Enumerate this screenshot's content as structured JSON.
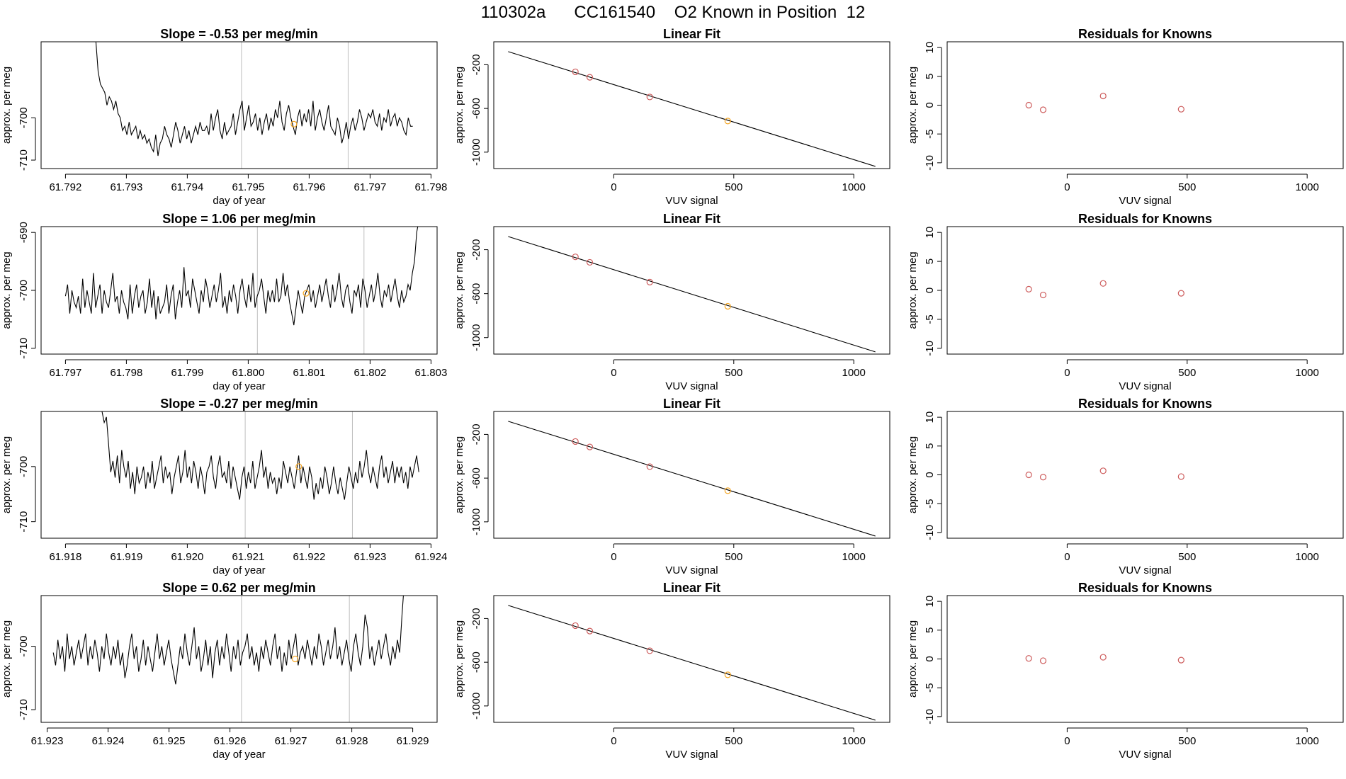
{
  "title": "110302a      CC161540    O2 Known in Position  12",
  "colors": {
    "line": "#000000",
    "known": "#cd5c5c",
    "sample": "#f5a623",
    "vline": "#bebebe",
    "box": "#000000"
  },
  "chart_data": [
    {
      "type": "line",
      "row": 1,
      "col": 1,
      "title": "Slope =  -0.53  per meg/min",
      "xlabel": "day of year",
      "ylabel": "approx. per meg",
      "xlim": [
        61.7916,
        61.7981
      ],
      "ylim": [
        -712,
        -682
      ],
      "xticks": [
        61.792,
        61.793,
        61.794,
        61.795,
        61.796,
        61.797,
        61.798
      ],
      "xtick_labels": [
        "61.792",
        "61.793",
        "61.794",
        "61.795",
        "61.796",
        "61.797",
        "61.798"
      ],
      "yticks": [
        -700,
        -710
      ],
      "ytick_labels": [
        "-700",
        "-710"
      ],
      "series_start": 61.7925,
      "series_end": 61.7977,
      "series_values": [
        -682,
        -689,
        -692,
        -693,
        -694,
        -697,
        -695,
        -696,
        -698,
        -696,
        -699,
        -700,
        -703,
        -702,
        -704,
        -701,
        -704,
        -703,
        -702,
        -705,
        -703,
        -705,
        -704,
        -706,
        -705,
        -707,
        -708,
        -704,
        -709,
        -706,
        -705,
        -702,
        -704,
        -705,
        -707,
        -704,
        -701,
        -703,
        -706,
        -704,
        -702,
        -705,
        -703,
        -706,
        -704,
        -702,
        -704,
        -701,
        -703,
        -703,
        -702,
        -704,
        -699,
        -703,
        -700,
        -698,
        -703,
        -705,
        -701,
        -704,
        -703,
        -702,
        -699,
        -704,
        -701,
        -698,
        -696,
        -703,
        -700,
        -697,
        -702,
        -701,
        -699,
        -703,
        -700,
        -704,
        -701,
        -699,
        -703,
        -700,
        -702,
        -698,
        -700,
        -696,
        -701,
        -703,
        -699,
        -697,
        -700,
        -702,
        -704,
        -700,
        -698,
        -702,
        -699,
        -701,
        -698,
        -702,
        -696,
        -703,
        -700,
        -698,
        -701,
        -703,
        -700,
        -697,
        -702,
        -703,
        -704,
        -700,
        -702,
        -706,
        -704,
        -701,
        -705,
        -702,
        -700,
        -703,
        -701,
        -698,
        -700,
        -703,
        -701,
        -699,
        -700,
        -698,
        -701,
        -702,
        -699,
        -703,
        -700,
        -701,
        -698,
        -702,
        -700,
        -699,
        -702,
        -700,
        -701,
        -703,
        -704,
        -700,
        -702,
        -702
      ],
      "vlines": [
        61.79489,
        61.79664
      ],
      "sample_points": [
        {
          "x": 61.79575,
          "y": -701.5
        }
      ]
    },
    {
      "type": "scatter",
      "row": 1,
      "col": 2,
      "title": "Linear Fit",
      "xlabel": "VUV signal",
      "ylabel": "approx. per meg",
      "xlim": [
        -500,
        1150
      ],
      "ylim": [
        -1150,
        10
      ],
      "xticks": [
        0,
        500,
        1000
      ],
      "xtick_labels": [
        "0",
        "500",
        "1000"
      ],
      "yticks": [
        -200,
        -600,
        -1000
      ],
      "ytick_labels": [
        "-200",
        "-600",
        "-1000"
      ],
      "fit_line": [
        [
          -440,
          -80
        ],
        [
          1090,
          -1130
        ]
      ],
      "known_points": [
        [
          -160,
          -265
        ],
        [
          -100,
          -315
        ],
        [
          150,
          -495
        ]
      ],
      "sample_points": [
        [
          475,
          -715
        ]
      ]
    },
    {
      "type": "scatter",
      "row": 1,
      "col": 3,
      "title": "Residuals for Knowns",
      "xlabel": "VUV signal",
      "ylabel": "approx. per meg",
      "xlim": [
        -500,
        1150
      ],
      "ylim": [
        -11,
        11
      ],
      "xticks": [
        0,
        500,
        1000
      ],
      "xtick_labels": [
        "0",
        "500",
        "1000"
      ],
      "yticks": [
        10,
        5,
        0,
        -5,
        -10
      ],
      "ytick_labels": [
        "10",
        "5",
        "0",
        "-5",
        "-10"
      ],
      "known_points": [
        [
          -160,
          0
        ],
        [
          -100,
          -0.8
        ],
        [
          150,
          1.6
        ],
        [
          475,
          -0.7
        ]
      ]
    },
    {
      "type": "line",
      "row": 2,
      "col": 1,
      "title": "Slope =  1.06  per meg/min",
      "xlabel": "day of year",
      "ylabel": "approx. per meg",
      "xlim": [
        61.7966,
        61.8031
      ],
      "ylim": [
        -711,
        -689
      ],
      "xticks": [
        61.797,
        61.798,
        61.799,
        61.8,
        61.801,
        61.802,
        61.803
      ],
      "xtick_labels": [
        "61.797",
        "61.798",
        "61.799",
        "61.800",
        "61.801",
        "61.802",
        "61.803"
      ],
      "yticks": [
        -690,
        -700,
        -710
      ],
      "ytick_labels": [
        "-690",
        "-700",
        "-710"
      ],
      "series_start": 61.797,
      "series_end": 61.8028,
      "series_values": [
        -701,
        -699,
        -704,
        -700,
        -702,
        -703,
        -701,
        -704,
        -698,
        -703,
        -700,
        -702,
        -704,
        -697,
        -703,
        -701,
        -699,
        -704,
        -700,
        -702,
        -703,
        -700,
        -697,
        -702,
        -701,
        -704,
        -700,
        -702,
        -703,
        -705,
        -699,
        -704,
        -701,
        -699,
        -703,
        -701,
        -700,
        -704,
        -702,
        -698,
        -703,
        -700,
        -705,
        -701,
        -704,
        -703,
        -702,
        -699,
        -704,
        -701,
        -699,
        -705,
        -702,
        -700,
        -703,
        -696,
        -701,
        -700,
        -703,
        -698,
        -700,
        -702,
        -704,
        -700,
        -702,
        -698,
        -700,
        -703,
        -701,
        -699,
        -702,
        -700,
        -697,
        -703,
        -701,
        -704,
        -700,
        -702,
        -699,
        -701,
        -704,
        -700,
        -698,
        -701,
        -703,
        -699,
        -702,
        -697,
        -703,
        -701,
        -700,
        -698,
        -701,
        -704,
        -700,
        -702,
        -700,
        -702,
        -698,
        -702,
        -701,
        -697,
        -701,
        -699,
        -702,
        -704,
        -706,
        -703,
        -700,
        -702,
        -704,
        -701,
        -700,
        -699,
        -702,
        -700,
        -703,
        -701,
        -699,
        -702,
        -700,
        -698,
        -701,
        -703,
        -699,
        -702,
        -700,
        -697,
        -701,
        -703,
        -700,
        -699,
        -702,
        -704,
        -700,
        -701,
        -699,
        -703,
        -698,
        -700,
        -703,
        -701,
        -699,
        -702,
        -700,
        -697,
        -701,
        -703,
        -700,
        -701,
        -699,
        -702,
        -700,
        -698,
        -701,
        -703,
        -700,
        -702,
        -701,
        -699,
        -700,
        -697,
        -695,
        -690,
        -688
      ],
      "vlines": [
        61.80015,
        61.8019
      ],
      "sample_points": [
        {
          "x": 61.80095,
          "y": -700.5
        }
      ]
    },
    {
      "type": "scatter",
      "row": 2,
      "col": 2,
      "title": "Linear Fit",
      "xlabel": "VUV signal",
      "ylabel": "approx. per meg",
      "xlim": [
        -500,
        1150
      ],
      "ylim": [
        -1150,
        10
      ],
      "xticks": [
        0,
        500,
        1000
      ],
      "xtick_labels": [
        "0",
        "500",
        "1000"
      ],
      "yticks": [
        -200,
        -600,
        -1000
      ],
      "ytick_labels": [
        "-200",
        "-600",
        "-1000"
      ],
      "fit_line": [
        [
          -440,
          -80
        ],
        [
          1090,
          -1130
        ]
      ],
      "known_points": [
        [
          -160,
          -265
        ],
        [
          -100,
          -315
        ],
        [
          150,
          -495
        ]
      ],
      "sample_points": [
        [
          475,
          -715
        ]
      ]
    },
    {
      "type": "scatter",
      "row": 2,
      "col": 3,
      "title": "Residuals for Knowns",
      "xlabel": "VUV signal",
      "ylabel": "approx. per meg",
      "xlim": [
        -500,
        1150
      ],
      "ylim": [
        -11,
        11
      ],
      "xticks": [
        0,
        500,
        1000
      ],
      "xtick_labels": [
        "0",
        "500",
        "1000"
      ],
      "yticks": [
        10,
        5,
        0,
        -5,
        -10
      ],
      "ytick_labels": [
        "10",
        "5",
        "0",
        "-5",
        "-10"
      ],
      "known_points": [
        [
          -160,
          0.2
        ],
        [
          -100,
          -0.8
        ],
        [
          150,
          1.2
        ],
        [
          475,
          -0.5
        ]
      ]
    },
    {
      "type": "line",
      "row": 3,
      "col": 1,
      "title": "Slope =  -0.27  per meg/min",
      "xlabel": "day of year",
      "ylabel": "approx. per meg",
      "xlim": [
        61.9176,
        61.9241
      ],
      "ylim": [
        -713,
        -690
      ],
      "xticks": [
        61.918,
        61.919,
        61.92,
        61.921,
        61.922,
        61.923,
        61.924
      ],
      "xtick_labels": [
        "61.918",
        "61.919",
        "61.920",
        "61.921",
        "61.922",
        "61.923",
        "61.924"
      ],
      "yticks": [
        -700,
        -710
      ],
      "ytick_labels": [
        "-700",
        "-710"
      ],
      "series_start": 61.9186,
      "series_end": 61.9238,
      "series_values": [
        -690,
        -692,
        -691,
        -696,
        -701,
        -699,
        -702,
        -698,
        -703,
        -697,
        -700,
        -702,
        -699,
        -704,
        -701,
        -705,
        -700,
        -703,
        -702,
        -700,
        -704,
        -701,
        -703,
        -699,
        -704,
        -702,
        -700,
        -698,
        -703,
        -700,
        -702,
        -701,
        -705,
        -702,
        -700,
        -698,
        -703,
        -701,
        -697,
        -702,
        -700,
        -703,
        -699,
        -701,
        -704,
        -700,
        -702,
        -705,
        -701,
        -700,
        -698,
        -702,
        -704,
        -700,
        -698,
        -702,
        -701,
        -703,
        -699,
        -704,
        -700,
        -702,
        -704,
        -706,
        -702,
        -700,
        -704,
        -701,
        -703,
        -699,
        -704,
        -702,
        -700,
        -697,
        -702,
        -700,
        -704,
        -701,
        -703,
        -702,
        -705,
        -702,
        -704,
        -699,
        -701,
        -703,
        -700,
        -702,
        -704,
        -701,
        -698,
        -703,
        -700,
        -702,
        -704,
        -700,
        -702,
        -706,
        -703,
        -705,
        -702,
        -704,
        -700,
        -702,
        -705,
        -703,
        -700,
        -703,
        -705,
        -702,
        -704,
        -706,
        -703,
        -700,
        -702,
        -704,
        -701,
        -703,
        -699,
        -702,
        -700,
        -697,
        -701,
        -703,
        -700,
        -702,
        -704,
        -700,
        -698,
        -702,
        -700,
        -703,
        -701,
        -699,
        -703,
        -700,
        -702,
        -700,
        -703,
        -701,
        -704,
        -700,
        -702,
        -700,
        -698,
        -701
      ],
      "vlines": [
        61.92095,
        61.92271
      ],
      "sample_points": [
        {
          "x": 61.92183,
          "y": -700
        }
      ]
    },
    {
      "type": "scatter",
      "row": 3,
      "col": 2,
      "title": "Linear Fit",
      "xlabel": "VUV signal",
      "ylabel": "approx. per meg",
      "xlim": [
        -500,
        1150
      ],
      "ylim": [
        -1150,
        10
      ],
      "xticks": [
        0,
        500,
        1000
      ],
      "xtick_labels": [
        "0",
        "500",
        "1000"
      ],
      "yticks": [
        -200,
        -600,
        -1000
      ],
      "ytick_labels": [
        "-200",
        "-600",
        "-1000"
      ],
      "fit_line": [
        [
          -440,
          -80
        ],
        [
          1090,
          -1130
        ]
      ],
      "known_points": [
        [
          -160,
          -265
        ],
        [
          -100,
          -315
        ],
        [
          150,
          -495
        ]
      ],
      "sample_points": [
        [
          475,
          -715
        ]
      ]
    },
    {
      "type": "scatter",
      "row": 3,
      "col": 3,
      "title": "Residuals for Knowns",
      "xlabel": "VUV signal",
      "ylabel": "approx. per meg",
      "xlim": [
        -500,
        1150
      ],
      "ylim": [
        -11,
        11
      ],
      "xticks": [
        0,
        500,
        1000
      ],
      "xtick_labels": [
        "0",
        "500",
        "1000"
      ],
      "yticks": [
        10,
        5,
        0,
        -5,
        -10
      ],
      "ytick_labels": [
        "10",
        "5",
        "0",
        "-5",
        "-10"
      ],
      "known_points": [
        [
          -160,
          0
        ],
        [
          -100,
          -0.4
        ],
        [
          150,
          0.7
        ],
        [
          475,
          -0.3
        ]
      ]
    },
    {
      "type": "line",
      "row": 4,
      "col": 1,
      "title": "Slope =  0.62  per meg/min",
      "xlabel": "day of year",
      "ylabel": "approx. per meg",
      "xlim": [
        61.9229,
        61.9294
      ],
      "ylim": [
        -712,
        -692
      ],
      "xticks": [
        61.923,
        61.924,
        61.925,
        61.926,
        61.927,
        61.928,
        61.929
      ],
      "xtick_labels": [
        "61.923",
        "61.924",
        "61.925",
        "61.926",
        "61.927",
        "61.928",
        "61.929"
      ],
      "yticks": [
        -700,
        -710
      ],
      "ytick_labels": [
        "-700",
        "-710"
      ],
      "series_start": 61.9231,
      "series_end": 61.9289,
      "series_values": [
        -701,
        -703,
        -699,
        -702,
        -700,
        -704,
        -698,
        -702,
        -700,
        -703,
        -701,
        -699,
        -702,
        -700,
        -698,
        -703,
        -700,
        -702,
        -699,
        -701,
        -704,
        -700,
        -702,
        -698,
        -701,
        -703,
        -700,
        -702,
        -699,
        -703,
        -701,
        -705,
        -703,
        -700,
        -698,
        -702,
        -700,
        -704,
        -702,
        -699,
        -703,
        -700,
        -702,
        -704,
        -701,
        -698,
        -702,
        -700,
        -703,
        -701,
        -699,
        -702,
        -704,
        -706,
        -703,
        -700,
        -702,
        -698,
        -701,
        -703,
        -700,
        -697,
        -702,
        -700,
        -704,
        -702,
        -699,
        -703,
        -700,
        -705,
        -701,
        -699,
        -703,
        -700,
        -702,
        -698,
        -701,
        -704,
        -700,
        -702,
        -699,
        -703,
        -701,
        -700,
        -698,
        -702,
        -700,
        -703,
        -701,
        -704,
        -700,
        -702,
        -699,
        -701,
        -703,
        -700,
        -698,
        -702,
        -700,
        -704,
        -701,
        -703,
        -699,
        -702,
        -700,
        -698,
        -703,
        -701,
        -700,
        -702,
        -699,
        -701,
        -703,
        -700,
        -702,
        -698,
        -700,
        -703,
        -701,
        -699,
        -702,
        -700,
        -697,
        -702,
        -700,
        -703,
        -701,
        -699,
        -702,
        -704,
        -700,
        -698,
        -701,
        -703,
        -700,
        -695,
        -697,
        -702,
        -700,
        -703,
        -701,
        -699,
        -702,
        -700,
        -698,
        -701,
        -703,
        -700,
        -702,
        -699,
        -701,
        -695,
        -690,
        -686
      ],
      "vlines": [
        61.92619,
        61.92796
      ],
      "sample_points": [
        {
          "x": 61.92707,
          "y": -702
        }
      ]
    },
    {
      "type": "scatter",
      "row": 4,
      "col": 2,
      "title": "Linear Fit",
      "xlabel": "VUV signal",
      "ylabel": "approx. per meg",
      "xlim": [
        -500,
        1150
      ],
      "ylim": [
        -1150,
        10
      ],
      "xticks": [
        0,
        500,
        1000
      ],
      "xtick_labels": [
        "0",
        "500",
        "1000"
      ],
      "yticks": [
        -200,
        -600,
        -1000
      ],
      "ytick_labels": [
        "-200",
        "-600",
        "-1000"
      ],
      "fit_line": [
        [
          -440,
          -80
        ],
        [
          1090,
          -1130
        ]
      ],
      "known_points": [
        [
          -160,
          -265
        ],
        [
          -100,
          -315
        ],
        [
          150,
          -495
        ]
      ],
      "sample_points": [
        [
          475,
          -715
        ]
      ]
    },
    {
      "type": "scatter",
      "row": 4,
      "col": 3,
      "title": "Residuals for Knowns",
      "xlabel": "VUV signal",
      "ylabel": "approx. per meg",
      "xlim": [
        -500,
        1150
      ],
      "ylim": [
        -11,
        11
      ],
      "xticks": [
        0,
        500,
        1000
      ],
      "xtick_labels": [
        "0",
        "500",
        "1000"
      ],
      "yticks": [
        10,
        5,
        0,
        -5,
        -10
      ],
      "ytick_labels": [
        "10",
        "5",
        "0",
        "-5",
        "-10"
      ],
      "known_points": [
        [
          -160,
          0.1
        ],
        [
          -100,
          -0.3
        ],
        [
          150,
          0.3
        ],
        [
          475,
          -0.2
        ]
      ]
    }
  ]
}
